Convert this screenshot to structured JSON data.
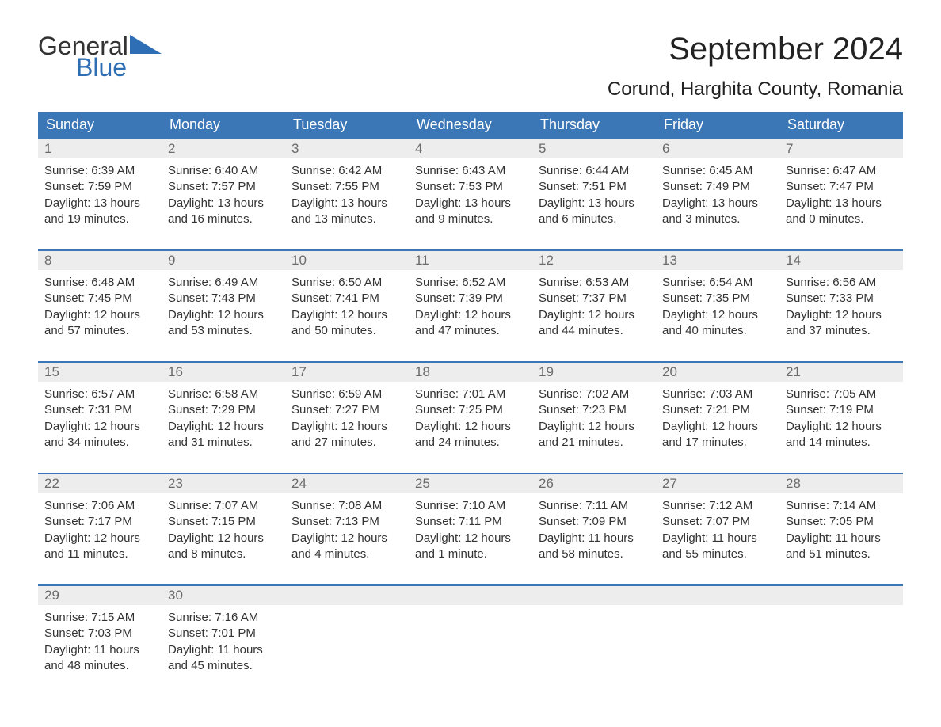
{
  "brand": {
    "text_general": "General",
    "text_blue": "Blue",
    "triangle_color": "#2d6eb5",
    "general_color": "#333333",
    "blue_color": "#2d6eb5"
  },
  "title": "September 2024",
  "subtitle": "Corund, Harghita County, Romania",
  "colors": {
    "header_bg": "#3b77b7",
    "header_text": "#ffffff",
    "daynum_bg": "#ededed",
    "daynum_text": "#6b6b6b",
    "body_text": "#333333",
    "cell_border": "#3b77b7",
    "page_bg": "#ffffff"
  },
  "typography": {
    "title_fontsize": 40,
    "subtitle_fontsize": 24,
    "dayheader_fontsize": 18,
    "daynum_fontsize": 17,
    "body_fontsize": 15,
    "font_family": "Arial"
  },
  "day_headers": [
    "Sunday",
    "Monday",
    "Tuesday",
    "Wednesday",
    "Thursday",
    "Friday",
    "Saturday"
  ],
  "weeks": [
    [
      {
        "day": "1",
        "sunrise": "Sunrise: 6:39 AM",
        "sunset": "Sunset: 7:59 PM",
        "dl1": "Daylight: 13 hours",
        "dl2": "and 19 minutes."
      },
      {
        "day": "2",
        "sunrise": "Sunrise: 6:40 AM",
        "sunset": "Sunset: 7:57 PM",
        "dl1": "Daylight: 13 hours",
        "dl2": "and 16 minutes."
      },
      {
        "day": "3",
        "sunrise": "Sunrise: 6:42 AM",
        "sunset": "Sunset: 7:55 PM",
        "dl1": "Daylight: 13 hours",
        "dl2": "and 13 minutes."
      },
      {
        "day": "4",
        "sunrise": "Sunrise: 6:43 AM",
        "sunset": "Sunset: 7:53 PM",
        "dl1": "Daylight: 13 hours",
        "dl2": "and 9 minutes."
      },
      {
        "day": "5",
        "sunrise": "Sunrise: 6:44 AM",
        "sunset": "Sunset: 7:51 PM",
        "dl1": "Daylight: 13 hours",
        "dl2": "and 6 minutes."
      },
      {
        "day": "6",
        "sunrise": "Sunrise: 6:45 AM",
        "sunset": "Sunset: 7:49 PM",
        "dl1": "Daylight: 13 hours",
        "dl2": "and 3 minutes."
      },
      {
        "day": "7",
        "sunrise": "Sunrise: 6:47 AM",
        "sunset": "Sunset: 7:47 PM",
        "dl1": "Daylight: 13 hours",
        "dl2": "and 0 minutes."
      }
    ],
    [
      {
        "day": "8",
        "sunrise": "Sunrise: 6:48 AM",
        "sunset": "Sunset: 7:45 PM",
        "dl1": "Daylight: 12 hours",
        "dl2": "and 57 minutes."
      },
      {
        "day": "9",
        "sunrise": "Sunrise: 6:49 AM",
        "sunset": "Sunset: 7:43 PM",
        "dl1": "Daylight: 12 hours",
        "dl2": "and 53 minutes."
      },
      {
        "day": "10",
        "sunrise": "Sunrise: 6:50 AM",
        "sunset": "Sunset: 7:41 PM",
        "dl1": "Daylight: 12 hours",
        "dl2": "and 50 minutes."
      },
      {
        "day": "11",
        "sunrise": "Sunrise: 6:52 AM",
        "sunset": "Sunset: 7:39 PM",
        "dl1": "Daylight: 12 hours",
        "dl2": "and 47 minutes."
      },
      {
        "day": "12",
        "sunrise": "Sunrise: 6:53 AM",
        "sunset": "Sunset: 7:37 PM",
        "dl1": "Daylight: 12 hours",
        "dl2": "and 44 minutes."
      },
      {
        "day": "13",
        "sunrise": "Sunrise: 6:54 AM",
        "sunset": "Sunset: 7:35 PM",
        "dl1": "Daylight: 12 hours",
        "dl2": "and 40 minutes."
      },
      {
        "day": "14",
        "sunrise": "Sunrise: 6:56 AM",
        "sunset": "Sunset: 7:33 PM",
        "dl1": "Daylight: 12 hours",
        "dl2": "and 37 minutes."
      }
    ],
    [
      {
        "day": "15",
        "sunrise": "Sunrise: 6:57 AM",
        "sunset": "Sunset: 7:31 PM",
        "dl1": "Daylight: 12 hours",
        "dl2": "and 34 minutes."
      },
      {
        "day": "16",
        "sunrise": "Sunrise: 6:58 AM",
        "sunset": "Sunset: 7:29 PM",
        "dl1": "Daylight: 12 hours",
        "dl2": "and 31 minutes."
      },
      {
        "day": "17",
        "sunrise": "Sunrise: 6:59 AM",
        "sunset": "Sunset: 7:27 PM",
        "dl1": "Daylight: 12 hours",
        "dl2": "and 27 minutes."
      },
      {
        "day": "18",
        "sunrise": "Sunrise: 7:01 AM",
        "sunset": "Sunset: 7:25 PM",
        "dl1": "Daylight: 12 hours",
        "dl2": "and 24 minutes."
      },
      {
        "day": "19",
        "sunrise": "Sunrise: 7:02 AM",
        "sunset": "Sunset: 7:23 PM",
        "dl1": "Daylight: 12 hours",
        "dl2": "and 21 minutes."
      },
      {
        "day": "20",
        "sunrise": "Sunrise: 7:03 AM",
        "sunset": "Sunset: 7:21 PM",
        "dl1": "Daylight: 12 hours",
        "dl2": "and 17 minutes."
      },
      {
        "day": "21",
        "sunrise": "Sunrise: 7:05 AM",
        "sunset": "Sunset: 7:19 PM",
        "dl1": "Daylight: 12 hours",
        "dl2": "and 14 minutes."
      }
    ],
    [
      {
        "day": "22",
        "sunrise": "Sunrise: 7:06 AM",
        "sunset": "Sunset: 7:17 PM",
        "dl1": "Daylight: 12 hours",
        "dl2": "and 11 minutes."
      },
      {
        "day": "23",
        "sunrise": "Sunrise: 7:07 AM",
        "sunset": "Sunset: 7:15 PM",
        "dl1": "Daylight: 12 hours",
        "dl2": "and 8 minutes."
      },
      {
        "day": "24",
        "sunrise": "Sunrise: 7:08 AM",
        "sunset": "Sunset: 7:13 PM",
        "dl1": "Daylight: 12 hours",
        "dl2": "and 4 minutes."
      },
      {
        "day": "25",
        "sunrise": "Sunrise: 7:10 AM",
        "sunset": "Sunset: 7:11 PM",
        "dl1": "Daylight: 12 hours",
        "dl2": "and 1 minute."
      },
      {
        "day": "26",
        "sunrise": "Sunrise: 7:11 AM",
        "sunset": "Sunset: 7:09 PM",
        "dl1": "Daylight: 11 hours",
        "dl2": "and 58 minutes."
      },
      {
        "day": "27",
        "sunrise": "Sunrise: 7:12 AM",
        "sunset": "Sunset: 7:07 PM",
        "dl1": "Daylight: 11 hours",
        "dl2": "and 55 minutes."
      },
      {
        "day": "28",
        "sunrise": "Sunrise: 7:14 AM",
        "sunset": "Sunset: 7:05 PM",
        "dl1": "Daylight: 11 hours",
        "dl2": "and 51 minutes."
      }
    ],
    [
      {
        "day": "29",
        "sunrise": "Sunrise: 7:15 AM",
        "sunset": "Sunset: 7:03 PM",
        "dl1": "Daylight: 11 hours",
        "dl2": "and 48 minutes."
      },
      {
        "day": "30",
        "sunrise": "Sunrise: 7:16 AM",
        "sunset": "Sunset: 7:01 PM",
        "dl1": "Daylight: 11 hours",
        "dl2": "and 45 minutes."
      },
      null,
      null,
      null,
      null,
      null
    ]
  ]
}
